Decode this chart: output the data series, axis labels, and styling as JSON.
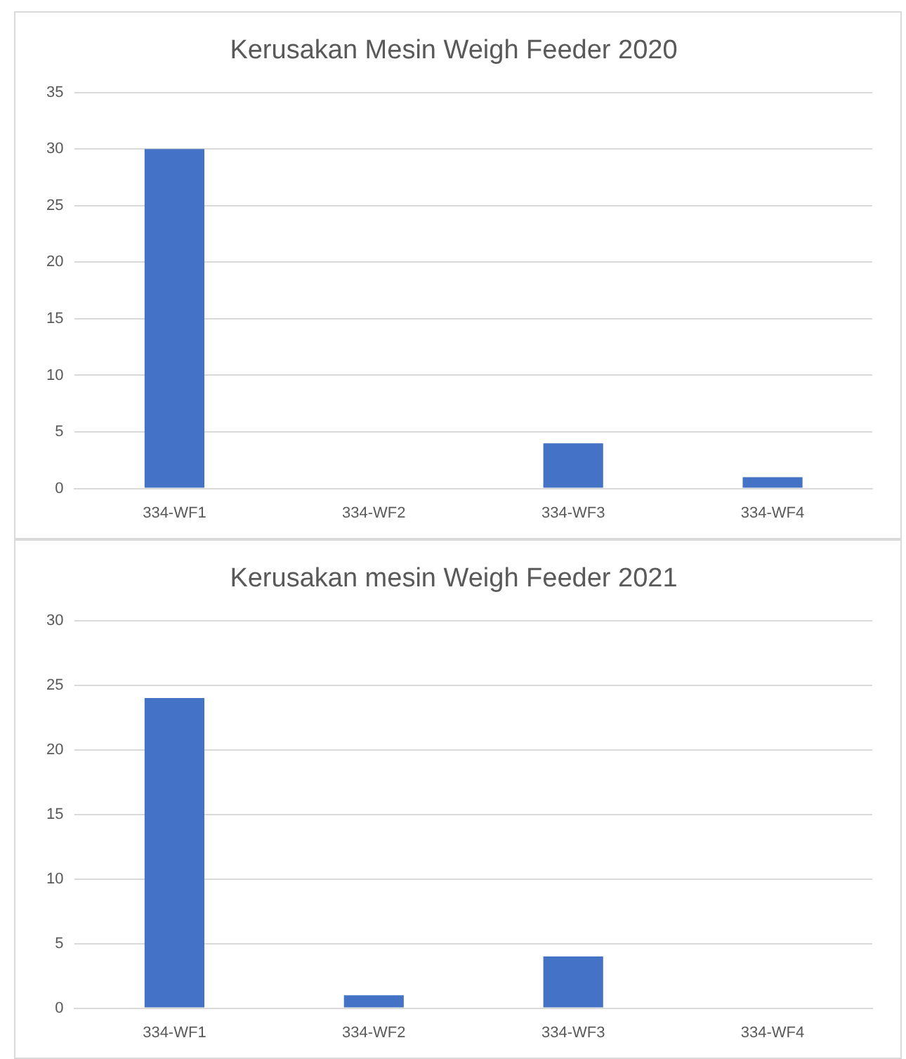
{
  "chart_data": [
    {
      "type": "bar",
      "title": "Kerusakan Mesin Weigh Feeder 2020",
      "categories": [
        "334-WF1",
        "334-WF2",
        "334-WF3",
        "334-WF4"
      ],
      "values": [
        30,
        0,
        4,
        1
      ],
      "color": "#4472c4",
      "ylim": [
        0,
        35
      ],
      "yticks": [
        0,
        5,
        10,
        15,
        20,
        25,
        30,
        35
      ],
      "grid": "y"
    },
    {
      "type": "bar",
      "title": "Kerusakan mesin Weigh Feeder 2021",
      "categories": [
        "334-WF1",
        "334-WF2",
        "334-WF3",
        "334-WF4"
      ],
      "values": [
        24,
        1,
        4,
        0
      ],
      "color": "#4472c4",
      "ylim": [
        0,
        30
      ],
      "yticks": [
        0,
        5,
        10,
        15,
        20,
        25,
        30
      ],
      "grid": "y"
    }
  ]
}
